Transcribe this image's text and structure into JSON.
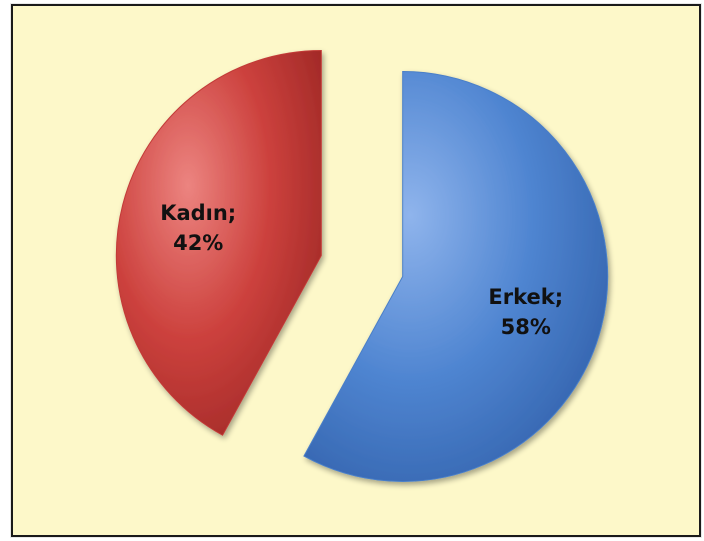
{
  "chart_data": {
    "type": "pie",
    "slices": [
      {
        "label": "Erkek",
        "value": 58,
        "color": "#4a7fc8",
        "data_label": "Erkek;",
        "data_value": "58%"
      },
      {
        "label": "Kadın",
        "value": 42,
        "color": "#c23a37",
        "data_label": "Kadın;",
        "data_value": "42%"
      }
    ],
    "exploded": true,
    "legend": "none",
    "background_color": "#fdf8c9"
  }
}
